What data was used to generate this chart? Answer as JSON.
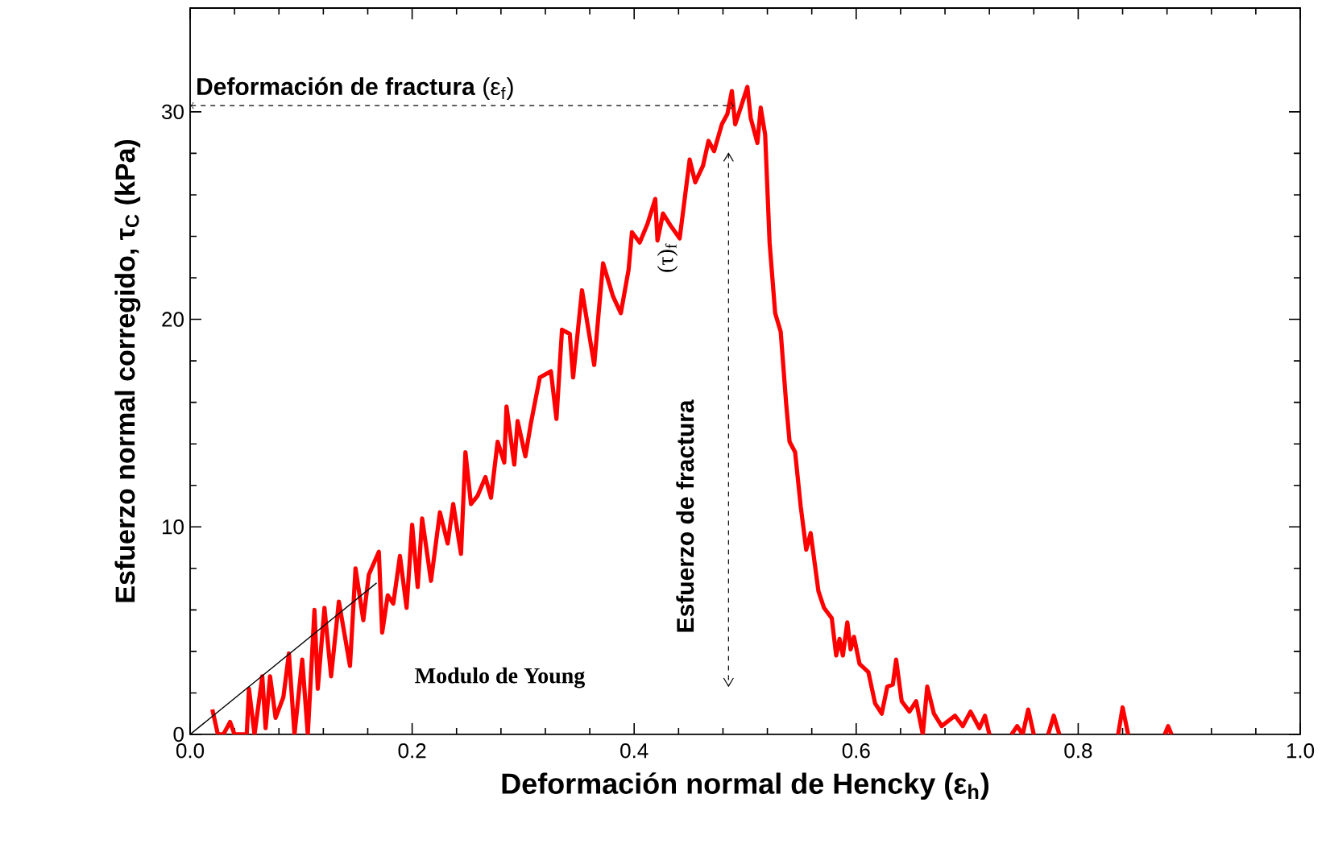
{
  "chart_data": {
    "type": "line",
    "xlabel": "Deformación normal de Hencky (ε$_{h}$)",
    "ylabel": "Esfuerzo normal corregido, τ$_{C}$ (kPa)",
    "xlim": [
      0,
      1
    ],
    "ylim": [
      0,
      35
    ],
    "xticks": [
      {
        "value": 0,
        "label": "0.0"
      },
      {
        "value": 0.2,
        "label": "0.2"
      },
      {
        "value": 0.4,
        "label": "0.4"
      },
      {
        "value": 0.6,
        "label": "0.6"
      },
      {
        "value": 0.8,
        "label": "0.8"
      },
      {
        "value": 1,
        "label": "1.0"
      }
    ],
    "yticks": [
      0,
      10,
      20,
      30
    ],
    "marker": "none",
    "line_style": "solid",
    "series": [
      {
        "color": "#ff0000",
        "x": [
          0.02,
          0.025,
          0.03,
          0.036,
          0.04,
          0.045,
          0.051,
          0.053,
          0.058,
          0.065,
          0.068,
          0.072,
          0.077,
          0.084,
          0.089,
          0.094,
          0.101,
          0.106,
          0.112,
          0.115,
          0.121,
          0.127,
          0.134,
          0.144,
          0.149,
          0.156,
          0.161,
          0.17,
          0.173,
          0.178,
          0.183,
          0.189,
          0.195,
          0.2,
          0.205,
          0.209,
          0.217,
          0.225,
          0.232,
          0.237,
          0.244,
          0.248,
          0.253,
          0.259,
          0.266,
          0.271,
          0.277,
          0.283,
          0.285,
          0.292,
          0.295,
          0.302,
          0.307,
          0.315,
          0.325,
          0.33,
          0.335,
          0.342,
          0.345,
          0.353,
          0.364,
          0.368,
          0.372,
          0.381,
          0.388,
          0.395,
          0.398,
          0.405,
          0.412,
          0.419,
          0.421,
          0.426,
          0.433,
          0.441,
          0.45,
          0.455,
          0.462,
          0.467,
          0.472,
          0.479,
          0.484,
          0.488,
          0.491,
          0.496,
          0.502,
          0.505,
          0.511,
          0.514,
          0.518,
          0.522,
          0.527,
          0.532,
          0.537,
          0.54,
          0.545,
          0.55,
          0.555,
          0.559,
          0.561,
          0.566,
          0.571,
          0.578,
          0.582,
          0.585,
          0.588,
          0.592,
          0.595,
          0.598,
          0.603,
          0.611,
          0.617,
          0.623,
          0.628,
          0.633,
          0.636,
          0.641,
          0.648,
          0.654,
          0.66,
          0.664,
          0.67,
          0.677,
          0.689,
          0.696,
          0.703,
          0.711,
          0.716,
          0.72,
          0.73,
          0.74,
          0.745,
          0.75,
          0.755,
          0.76,
          0.765,
          0.773,
          0.778,
          0.783,
          0.79,
          0.836,
          0.84,
          0.845,
          0.85,
          0.878,
          0.881,
          0.884
        ],
        "values": [
          1.2,
          0,
          0,
          0.6,
          0,
          0,
          0,
          2.2,
          0,
          2.8,
          0.3,
          2.8,
          0.8,
          1.8,
          3.9,
          0,
          3.6,
          0,
          6.0,
          2.2,
          6.1,
          2.8,
          6.4,
          3.3,
          8.0,
          5.5,
          7.7,
          8.8,
          4.9,
          6.7,
          6.3,
          8.6,
          6.1,
          10.1,
          7.1,
          10.4,
          7.4,
          10.7,
          9.2,
          11.1,
          8.7,
          13.6,
          11.1,
          11.5,
          12.4,
          11.4,
          14.1,
          13.1,
          15.8,
          13.0,
          15.1,
          13.4,
          15.0,
          17.2,
          17.5,
          15.2,
          19.5,
          19.3,
          17.2,
          21.4,
          17.8,
          20.3,
          22.7,
          21.1,
          20.3,
          22.4,
          24.2,
          23.7,
          24.6,
          25.8,
          23.8,
          25.1,
          24.5,
          23.9,
          27.7,
          26.6,
          27.4,
          28.6,
          28.1,
          29.4,
          29.9,
          31.0,
          29.4,
          30.2,
          31.2,
          29.7,
          28.5,
          30.2,
          28.9,
          23.7,
          20.3,
          19.4,
          15.9,
          14.1,
          13.6,
          11.0,
          8.9,
          9.7,
          8.9,
          6.9,
          6.1,
          5.6,
          3.8,
          4.6,
          3.8,
          5.4,
          4.1,
          4.7,
          3.4,
          3.0,
          1.5,
          1.0,
          2.3,
          2.4,
          3.6,
          1.6,
          1.1,
          1.6,
          0,
          2.3,
          1.0,
          0.4,
          0.9,
          0.4,
          1.1,
          0.3,
          0.9,
          0,
          null,
          0,
          0.4,
          0,
          1.2,
          0,
          null,
          0,
          0.9,
          0,
          null,
          0,
          1.3,
          0,
          null,
          0,
          0.4,
          0
        ]
      },
      {
        "color": "#000000",
        "x": [
          0,
          0.168
        ],
        "values": [
          0,
          7.3
        ]
      }
    ],
    "ref_lines": [
      {
        "axis": "x",
        "value": 0.485,
        "label": "Esfuerzo de fractura",
        "line_style": "dashed",
        "color": "#000000"
      }
    ],
    "annotations": [
      {
        "text": "**Deformación de fractura** (ε$_{f}$)",
        "x": 0.49,
        "y": 30.3
      },
      "(τ)$_{f}$",
      "Modulo de Young"
    ]
  }
}
